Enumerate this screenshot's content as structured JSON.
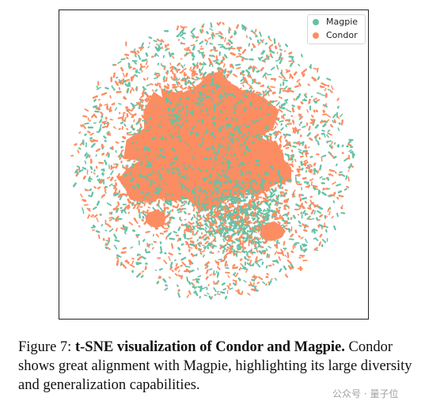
{
  "chart_data": {
    "type": "scatter",
    "title": "",
    "xlabel": "",
    "ylabel": "",
    "grid": false,
    "legend_placement": "top-right",
    "series": [
      {
        "name": "Magpie",
        "color": "#66c2a5"
      },
      {
        "name": "Condor",
        "color": "#fc8d62"
      }
    ]
  },
  "caption": {
    "label": "Figure 7:",
    "title": "t-SNE visualization of Condor and Magpie.",
    "body": "Condor shows great alignment with Magpie, highlighting its large diversity and generalization capabilities."
  },
  "watermark": "公众号 · 量子位"
}
